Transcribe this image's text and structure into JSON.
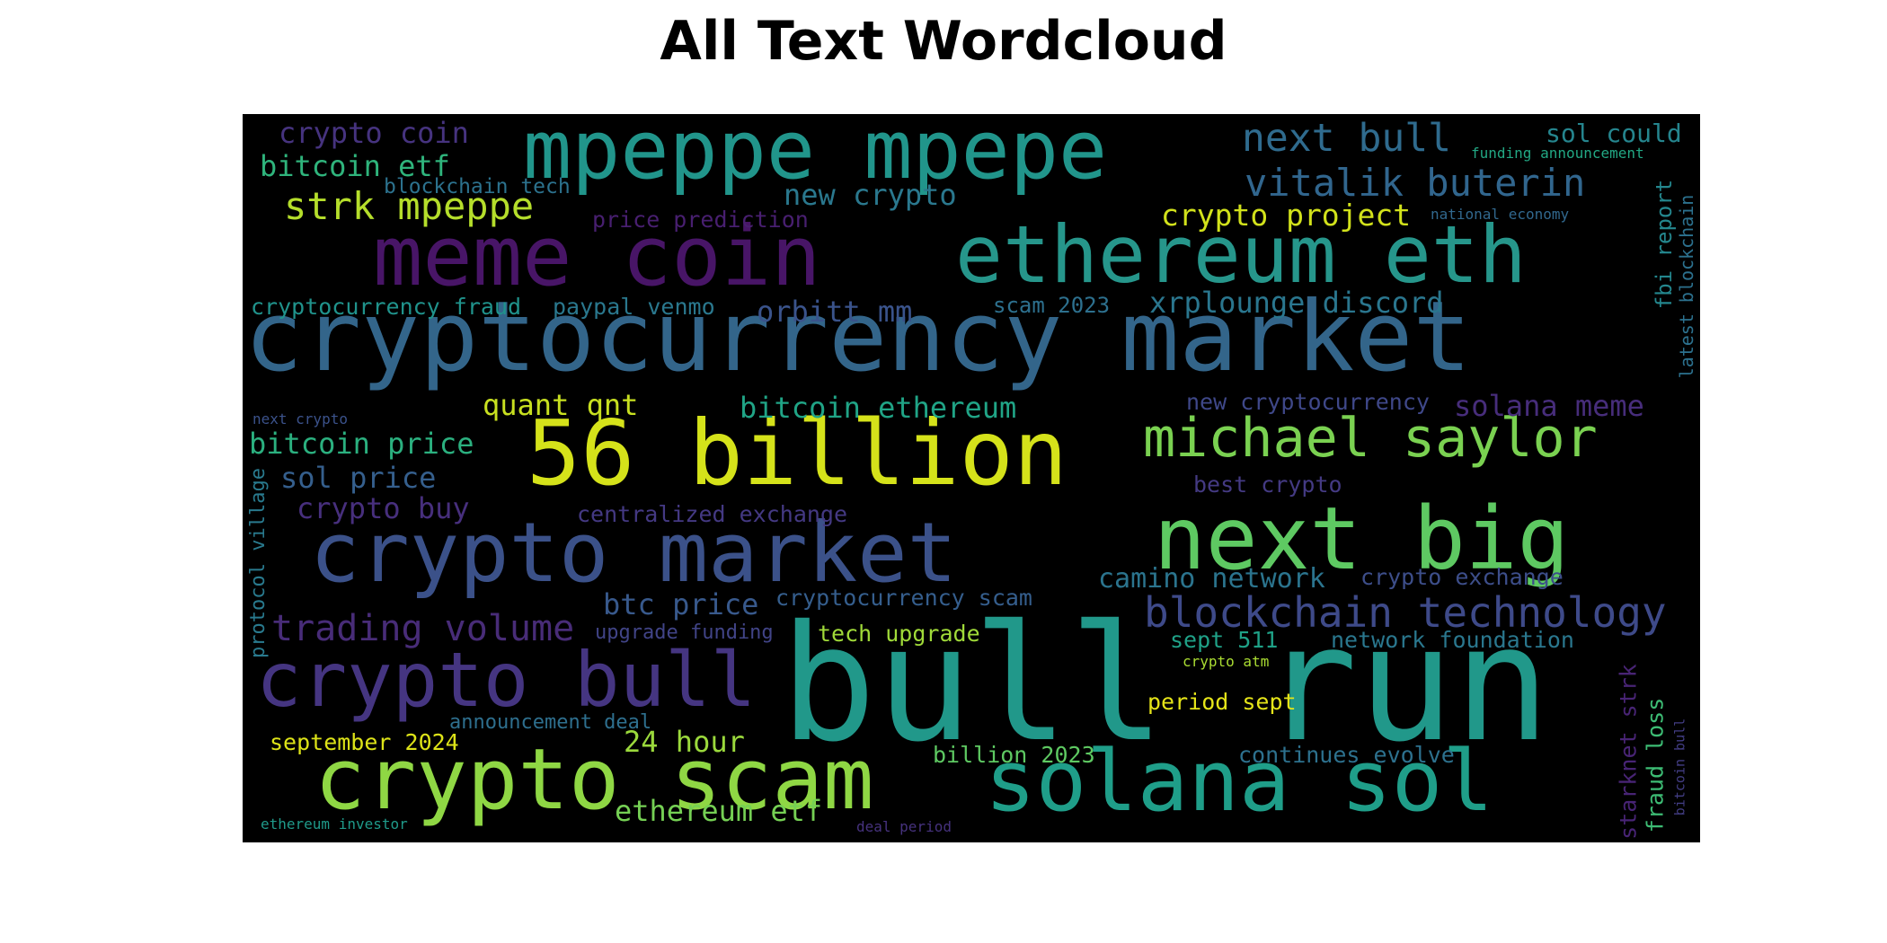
{
  "title": "All Text Wordcloud",
  "colors": {
    "background": "#000000",
    "palette": "viridis"
  },
  "words": [
    {
      "text": "cryptocurrency market",
      "color": "#33658a"
    },
    {
      "text": "bull run",
      "color": "#21988a"
    },
    {
      "text": "meme coin",
      "color": "#481567"
    },
    {
      "text": "ethereum eth",
      "color": "#26968b"
    },
    {
      "text": "mpeppe mpepe",
      "color": "#21958b"
    },
    {
      "text": "crypto market",
      "color": "#3b5189"
    },
    {
      "text": "56 billion",
      "color": "#d5e21a"
    },
    {
      "text": "next big",
      "color": "#5ec962"
    },
    {
      "text": "michael saylor",
      "color": "#7ad151"
    },
    {
      "text": "solana sol",
      "color": "#1f9e89"
    },
    {
      "text": "crypto scam",
      "color": "#8fd744"
    },
    {
      "text": "crypto bull",
      "color": "#453581"
    },
    {
      "text": "blockchain technology",
      "color": "#3e4a89"
    },
    {
      "text": "vitalik buterin",
      "color": "#31668e"
    },
    {
      "text": "next bull",
      "color": "#2f6b8e"
    },
    {
      "text": "strk mpeppe",
      "color": "#b5de2b"
    },
    {
      "text": "trading volume",
      "color": "#482c78"
    },
    {
      "text": "crypto coin",
      "color": "#46337f"
    },
    {
      "text": "bitcoin etf",
      "color": "#2fb47c"
    },
    {
      "text": "blockchain tech",
      "color": "#2c728e"
    },
    {
      "text": "price prediction",
      "color": "#481f70"
    },
    {
      "text": "new crypto",
      "color": "#2a788e"
    },
    {
      "text": "crypto project",
      "color": "#d2e21b"
    },
    {
      "text": "sol could",
      "color": "#25858e"
    },
    {
      "text": "funding announcement",
      "color": "#22a884"
    },
    {
      "text": "national economy",
      "color": "#31688e"
    },
    {
      "text": "fbi report",
      "color": "#24878e"
    },
    {
      "text": "latest blockchain",
      "color": "#2c718e"
    },
    {
      "text": "scam 2023",
      "color": "#2d708e"
    },
    {
      "text": "xrplounge discord",
      "color": "#2a768e"
    },
    {
      "text": "cryptocurrency fraud",
      "color": "#20938c"
    },
    {
      "text": "paypal venmo",
      "color": "#2a788e"
    },
    {
      "text": "orbitt mm",
      "color": "#3a538b"
    },
    {
      "text": "quant qnt",
      "color": "#c8e020"
    },
    {
      "text": "bitcoin ethereum",
      "color": "#20a486"
    },
    {
      "text": "new cryptocurrency",
      "color": "#3f4889"
    },
    {
      "text": "solana meme",
      "color": "#472d7b"
    },
    {
      "text": "next crypto",
      "color": "#3b528b"
    },
    {
      "text": "bitcoin price",
      "color": "#2bb07f"
    },
    {
      "text": "sol price",
      "color": "#355f8d"
    },
    {
      "text": "protocol village",
      "color": "#297a8e"
    },
    {
      "text": "best crypto",
      "color": "#443a83"
    },
    {
      "text": "crypto buy",
      "color": "#472f7d"
    },
    {
      "text": "centralized exchange",
      "color": "#443983"
    },
    {
      "text": "camino network",
      "color": "#2b748e"
    },
    {
      "text": "crypto exchange",
      "color": "#3d4e8a"
    },
    {
      "text": "btc price",
      "color": "#38598c"
    },
    {
      "text": "cryptocurrency scam",
      "color": "#355e8d"
    },
    {
      "text": "upgrade funding",
      "color": "#414487"
    },
    {
      "text": "tech upgrade",
      "color": "#a0da39"
    },
    {
      "text": "sept 511",
      "color": "#1fa187"
    },
    {
      "text": "network foundation",
      "color": "#2a778e"
    },
    {
      "text": "crypto atm",
      "color": "#aadc32"
    },
    {
      "text": "fraud loss",
      "color": "#3dbc74"
    },
    {
      "text": "starknet strk",
      "color": "#482475"
    },
    {
      "text": "bitcoin bull",
      "color": "#433e85"
    },
    {
      "text": "period sept",
      "color": "#e5e419"
    },
    {
      "text": "announcement deal",
      "color": "#2e6f8e"
    },
    {
      "text": "september 2024",
      "color": "#dde318"
    },
    {
      "text": "24 hour",
      "color": "#9bd93c"
    },
    {
      "text": "billion 2023",
      "color": "#5ec962"
    },
    {
      "text": "continues evolve",
      "color": "#2d718e"
    },
    {
      "text": "ethereum etf",
      "color": "#75d054"
    },
    {
      "text": "ethereum investor",
      "color": "#1f9a8a"
    },
    {
      "text": "deal period",
      "color": "#46327e"
    }
  ]
}
